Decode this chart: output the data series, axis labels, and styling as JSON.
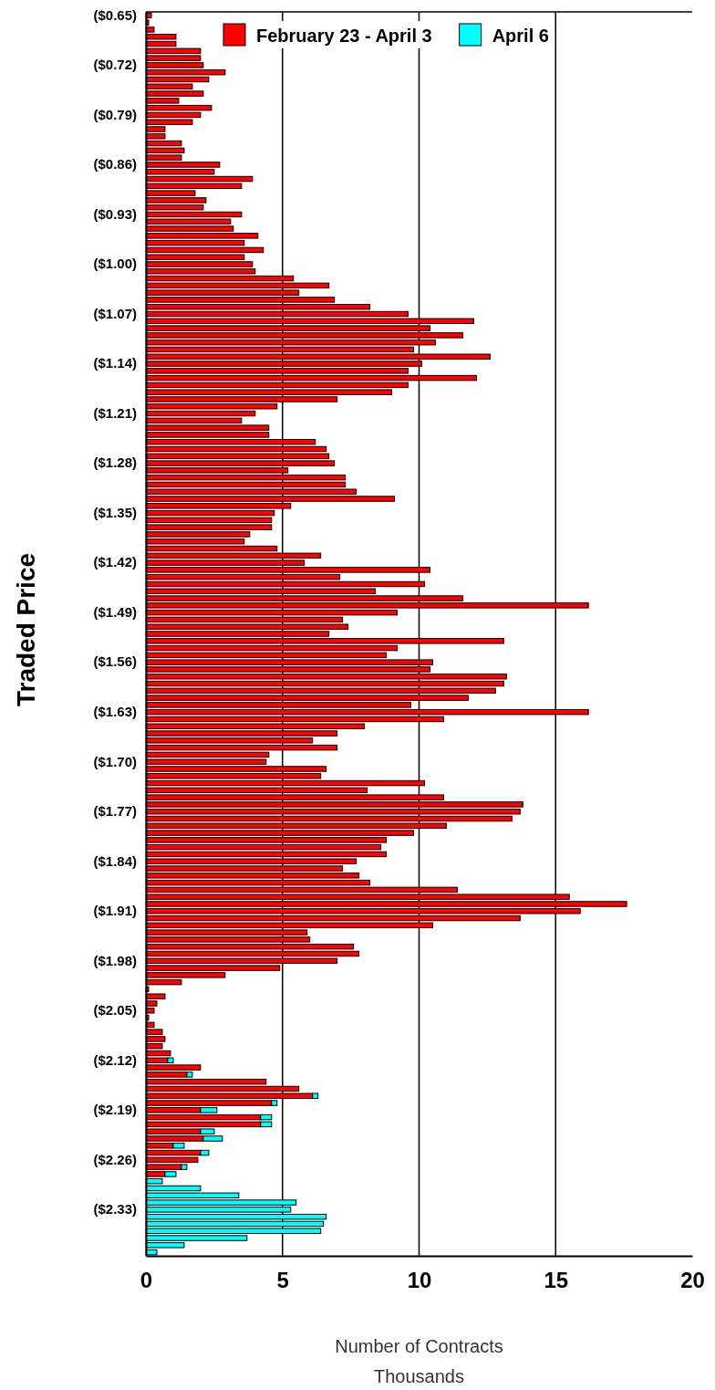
{
  "chart_data": {
    "type": "bar",
    "orientation": "horizontal",
    "stacked": true,
    "xlabel": "Number of Contracts\nThousands",
    "ylabel": "Traded Price",
    "xlim": [
      0,
      20
    ],
    "xticks": [
      0,
      5,
      10,
      15,
      20
    ],
    "grid": "x",
    "legend": "top",
    "categories": [
      "($0.65)",
      null,
      null,
      null,
      null,
      null,
      null,
      "($0.72)",
      null,
      null,
      null,
      null,
      null,
      null,
      "($0.79)",
      null,
      null,
      null,
      null,
      null,
      null,
      "($0.86)",
      null,
      null,
      null,
      null,
      null,
      null,
      "($0.93)",
      null,
      null,
      null,
      null,
      null,
      null,
      "($1.00)",
      null,
      null,
      null,
      null,
      null,
      null,
      "($1.07)",
      null,
      null,
      null,
      null,
      null,
      null,
      "($1.14)",
      null,
      null,
      null,
      null,
      null,
      null,
      "($1.21)",
      null,
      null,
      null,
      null,
      null,
      null,
      "($1.28)",
      null,
      null,
      null,
      null,
      null,
      null,
      "($1.35)",
      null,
      null,
      null,
      null,
      null,
      null,
      "($1.42)",
      null,
      null,
      null,
      null,
      null,
      null,
      "($1.49)",
      null,
      null,
      null,
      null,
      null,
      null,
      "($1.56)",
      null,
      null,
      null,
      null,
      null,
      null,
      "($1.63)",
      null,
      null,
      null,
      null,
      null,
      null,
      "($1.70)",
      null,
      null,
      null,
      null,
      null,
      null,
      "($1.77)",
      null,
      null,
      null,
      null,
      null,
      null,
      "($1.84)",
      null,
      null,
      null,
      null,
      null,
      null,
      "($1.91)",
      null,
      null,
      null,
      null,
      null,
      null,
      "($1.98)",
      null,
      null,
      null,
      null,
      null,
      null,
      "($2.05)",
      null,
      null,
      null,
      null,
      null,
      null,
      "($2.12)",
      null,
      null,
      null,
      null,
      null,
      null,
      "($2.19)",
      null,
      null,
      null,
      null,
      null,
      null,
      "($2.26)",
      null,
      null,
      null,
      null,
      null,
      null,
      "($2.33)",
      null,
      null,
      null,
      null,
      null,
      null
    ],
    "series": [
      {
        "name": "February 23 - April 3",
        "color": "#ff0000",
        "values": [
          0.2,
          0.1,
          0.3,
          1.1,
          1.1,
          2.0,
          2.0,
          2.1,
          2.9,
          2.3,
          1.7,
          2.1,
          1.2,
          2.4,
          2.0,
          1.7,
          0.7,
          0.7,
          1.3,
          1.4,
          1.3,
          2.7,
          2.5,
          3.9,
          3.5,
          1.8,
          2.2,
          2.1,
          3.5,
          3.1,
          3.2,
          4.1,
          3.6,
          4.3,
          3.6,
          3.9,
          4.0,
          5.4,
          6.7,
          5.6,
          6.9,
          8.2,
          9.6,
          12.0,
          10.4,
          11.6,
          10.6,
          9.8,
          12.6,
          10.1,
          9.6,
          12.1,
          9.6,
          9.0,
          7.0,
          4.8,
          4.0,
          3.5,
          4.5,
          4.5,
          6.2,
          6.6,
          6.7,
          6.9,
          5.2,
          7.3,
          7.3,
          7.7,
          9.1,
          5.3,
          4.7,
          4.6,
          4.6,
          3.8,
          3.6,
          4.8,
          6.4,
          5.8,
          10.4,
          7.1,
          10.2,
          8.4,
          11.6,
          16.2,
          9.2,
          7.2,
          7.4,
          6.7,
          13.1,
          9.2,
          8.8,
          10.5,
          10.4,
          13.2,
          13.1,
          12.8,
          11.8,
          9.7,
          16.2,
          10.9,
          8.0,
          7.0,
          6.1,
          7.0,
          4.5,
          4.4,
          6.6,
          6.4,
          10.2,
          8.1,
          10.9,
          13.8,
          13.7,
          13.4,
          11.0,
          9.8,
          8.8,
          8.6,
          8.8,
          7.7,
          7.2,
          7.8,
          8.2,
          11.4,
          15.5,
          17.6,
          15.9,
          13.7,
          10.5,
          5.9,
          6.0,
          7.6,
          7.8,
          7.0,
          4.9,
          2.9,
          1.3,
          0.1,
          0.7,
          0.4,
          0.3,
          0.1,
          0.3,
          0.6,
          0.7,
          0.6,
          0.9,
          0.8,
          2.0,
          1.5,
          4.4,
          5.6,
          6.1,
          4.6,
          2.0,
          4.2,
          4.2,
          2.0,
          2.1,
          1.0,
          2.0,
          1.9,
          1.3,
          0.7,
          null,
          null,
          null,
          null,
          null,
          null,
          null,
          null,
          null,
          null,
          null
        ]
      },
      {
        "name": "April 6",
        "color": "#00ffff",
        "values": [
          null,
          null,
          null,
          null,
          null,
          null,
          null,
          null,
          null,
          null,
          null,
          null,
          null,
          null,
          null,
          null,
          null,
          null,
          null,
          null,
          null,
          null,
          null,
          null,
          null,
          null,
          null,
          null,
          null,
          null,
          null,
          null,
          null,
          null,
          null,
          null,
          null,
          null,
          null,
          null,
          null,
          null,
          null,
          null,
          null,
          null,
          null,
          null,
          null,
          null,
          null,
          null,
          null,
          null,
          null,
          null,
          null,
          null,
          null,
          null,
          null,
          null,
          null,
          null,
          null,
          null,
          null,
          null,
          null,
          null,
          null,
          null,
          null,
          null,
          null,
          null,
          null,
          null,
          null,
          null,
          null,
          null,
          null,
          null,
          null,
          null,
          null,
          null,
          null,
          null,
          null,
          null,
          null,
          null,
          null,
          null,
          null,
          null,
          null,
          null,
          null,
          null,
          null,
          null,
          null,
          null,
          null,
          null,
          null,
          null,
          null,
          null,
          null,
          null,
          null,
          null,
          null,
          null,
          null,
          null,
          null,
          null,
          null,
          null,
          null,
          null,
          null,
          null,
          null,
          null,
          null,
          null,
          null,
          null,
          null,
          null,
          null,
          null,
          null,
          null,
          null,
          null,
          null,
          null,
          null,
          null,
          null,
          0.2,
          null,
          0.2,
          null,
          null,
          0.2,
          0.2,
          0.6,
          0.4,
          0.4,
          0.5,
          0.7,
          0.4,
          0.3,
          null,
          0.2,
          0.4,
          0.6,
          2.0,
          3.4,
          5.5,
          5.3,
          6.6,
          6.5,
          6.4,
          3.7,
          1.4,
          0.4
        ]
      }
    ]
  }
}
